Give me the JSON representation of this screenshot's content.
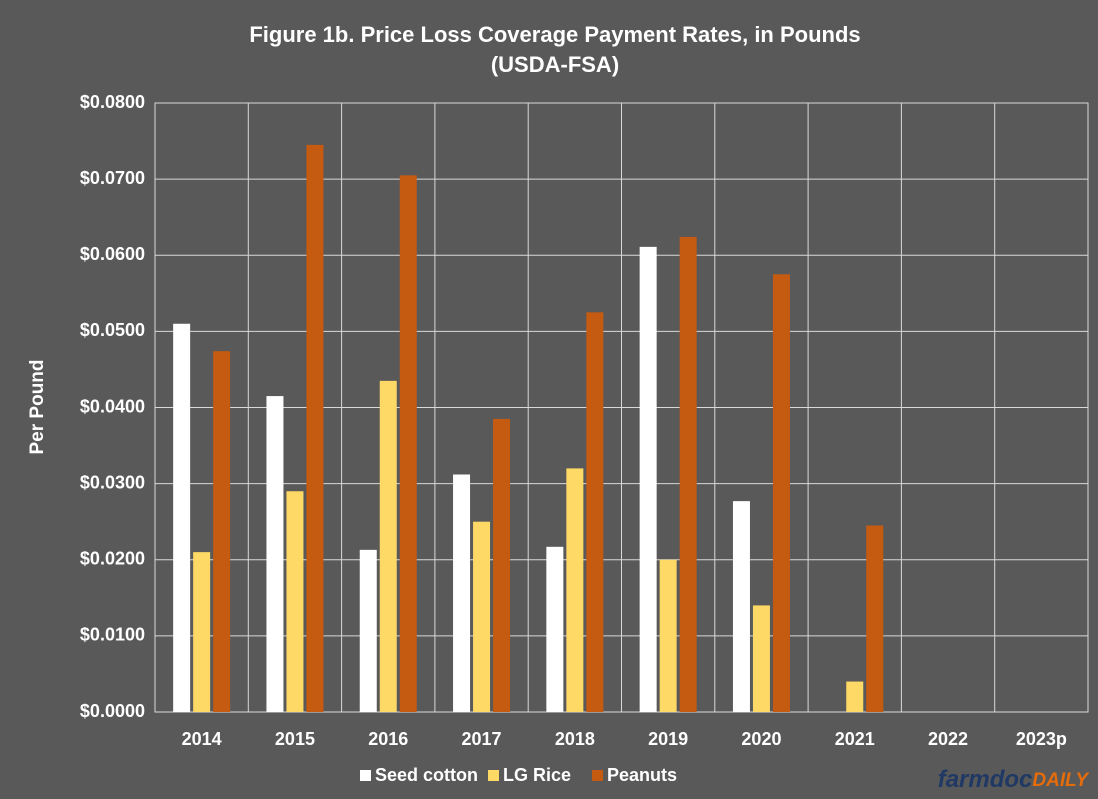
{
  "chart_data": {
    "type": "bar",
    "title": "Figure  1b. Price Loss Coverage Payment Rates, in Pounds",
    "subtitle": "(USDA-FSA)",
    "y_label": "Per Pound",
    "categories": [
      "2014",
      "2015",
      "2016",
      "2017",
      "2018",
      "2019",
      "2020",
      "2021",
      "2022",
      "2023p"
    ],
    "series": [
      {
        "name": "Seed cotton",
        "color": "#ffffff",
        "values": [
          0.051,
          0.0415,
          0.0213,
          0.0312,
          0.0217,
          0.0611,
          0.0277,
          0,
          0,
          0
        ]
      },
      {
        "name": "LG Rice",
        "color": "#ffd966",
        "values": [
          0.021,
          0.029,
          0.0435,
          0.025,
          0.032,
          0.02,
          0.014,
          0.004,
          0,
          0
        ]
      },
      {
        "name": "Peanuts",
        "color": "#c55a11",
        "values": [
          0.0474,
          0.0745,
          0.0705,
          0.0385,
          0.0525,
          0.0624,
          0.0575,
          0.0245,
          0,
          0
        ]
      }
    ],
    "ylim": [
      0,
      0.08
    ],
    "yticks": [
      {
        "value": 0,
        "label": "$0.0000"
      },
      {
        "value": 0.01,
        "label": "$0.0100"
      },
      {
        "value": 0.02,
        "label": "$0.0200"
      },
      {
        "value": 0.03,
        "label": "$0.0300"
      },
      {
        "value": 0.04,
        "label": "$0.0400"
      },
      {
        "value": 0.05,
        "label": "$0.0500"
      },
      {
        "value": 0.06,
        "label": "$0.0600"
      },
      {
        "value": 0.07,
        "label": "$0.0700"
      },
      {
        "value": 0.08,
        "label": "$0.0800"
      }
    ],
    "grid": true,
    "legend": "bottom",
    "logo": {
      "main": "farmdoc",
      "accent": "DAILY"
    }
  }
}
